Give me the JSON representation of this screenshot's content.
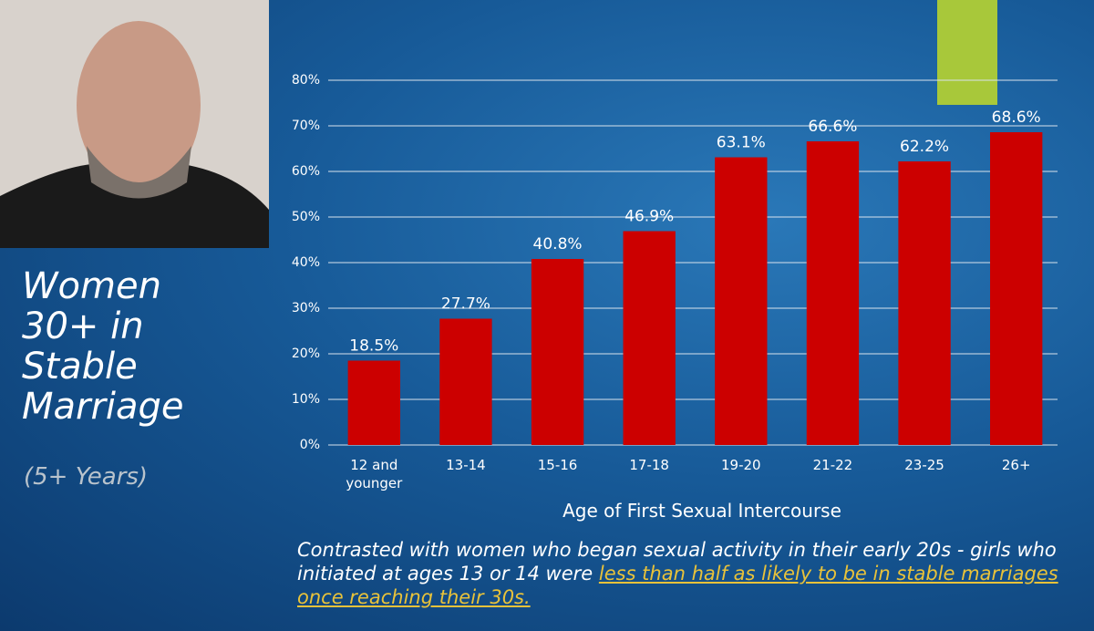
{
  "chart_data": {
    "type": "bar",
    "title": "Women 30+ in Stable Marriage",
    "subtitle": "(5+ Years)",
    "x_label": "Age of First Sexual Intercourse",
    "categories": [
      "12 and younger",
      "13-14",
      "15-16",
      "17-18",
      "19-20",
      "21-22",
      "23-25",
      "26+"
    ],
    "values": [
      18.5,
      27.7,
      40.8,
      46.9,
      63.1,
      66.6,
      62.2,
      68.6
    ],
    "value_labels": [
      "18.5%",
      "27.7%",
      "40.8%",
      "46.9%",
      "63.1%",
      "66.6%",
      "62.2%",
      "68.6%"
    ],
    "color": "#cc0000",
    "ylim": [
      0,
      80
    ],
    "yticks": [
      {
        "value": 0,
        "label": "0%"
      },
      {
        "value": 10,
        "label": "10%"
      },
      {
        "value": 20,
        "label": "20%"
      },
      {
        "value": 30,
        "label": "30%"
      },
      {
        "value": 40,
        "label": "40%"
      },
      {
        "value": 50,
        "label": "50%"
      },
      {
        "value": 60,
        "label": "60%"
      },
      {
        "value": 70,
        "label": "70%"
      },
      {
        "value": 80,
        "label": "80%"
      }
    ],
    "grid": true,
    "annotations": [
      "Contrasted with women who began sexual activity in their early 20s - girls who initiated at ages 13 or 14 were ",
      "less than half as likely to be in stable marriages once reaching their 30s."
    ]
  }
}
